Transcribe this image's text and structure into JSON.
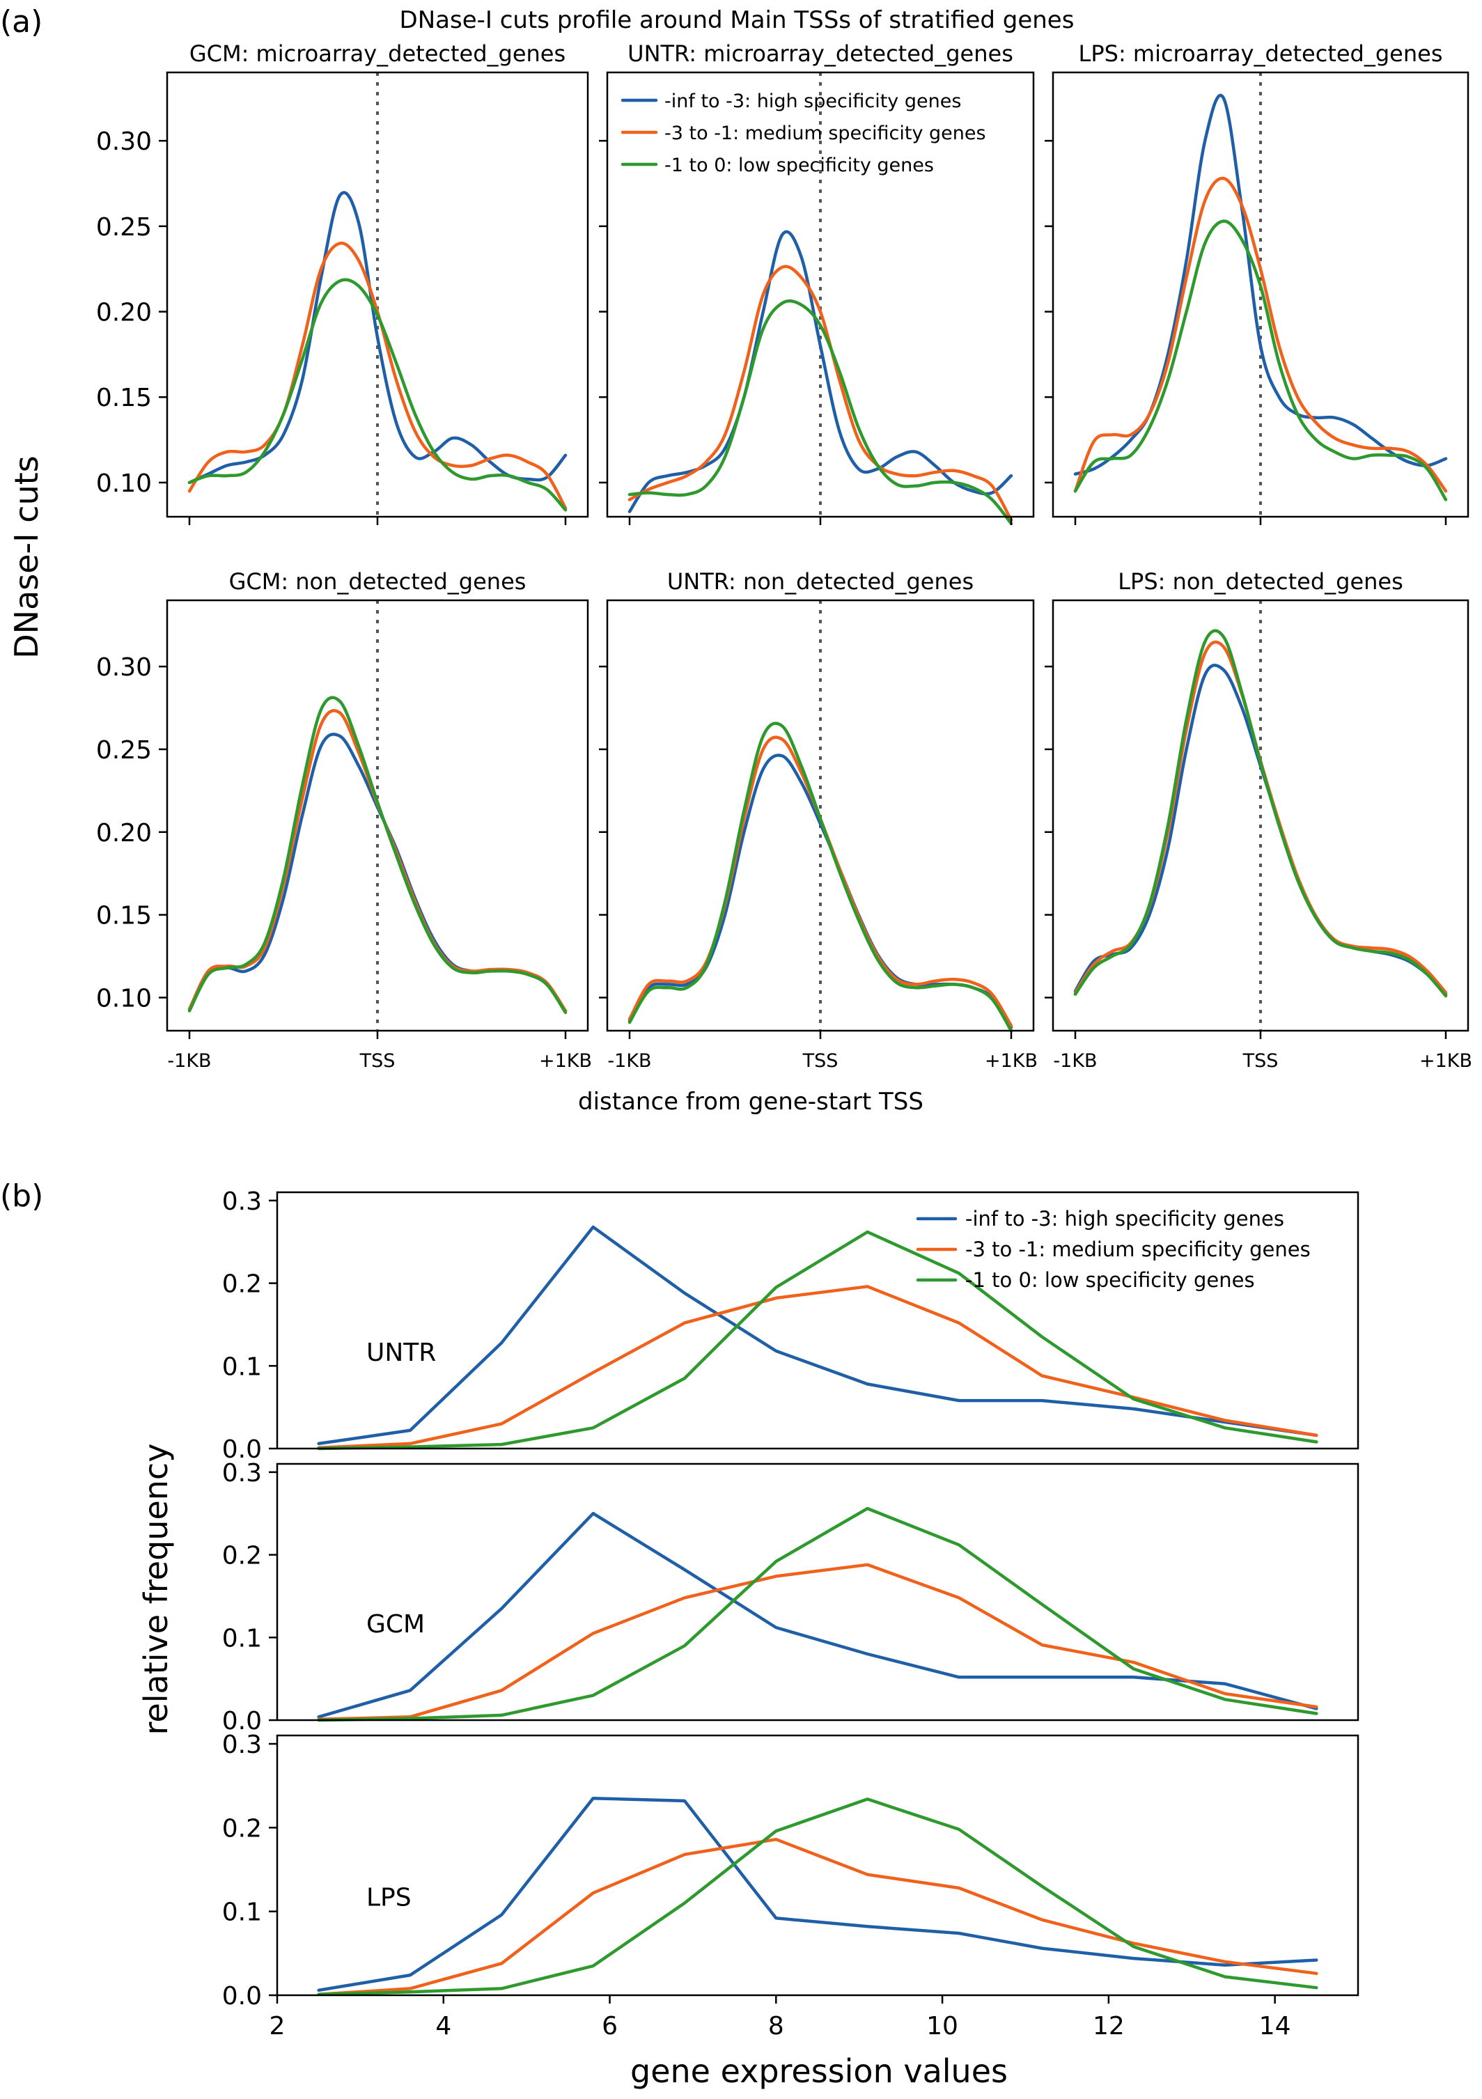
{
  "colors": {
    "high": "#1f5fa8",
    "medium": "#f0621c",
    "low": "#2e9a2e"
  },
  "panel_a": {
    "label": "(a)",
    "title": "DNase-I cuts profile around Main TSSs of stratified genes",
    "ylabel": "DNase-I cuts",
    "xlabel": "distance from gene-start TSS",
    "yticks": [
      "0.10",
      "0.15",
      "0.20",
      "0.25",
      "0.30"
    ],
    "xticks": [
      "-1KB",
      "TSS",
      "+1KB"
    ]
  },
  "panel_b": {
    "label": "(b)",
    "ylabel": "relative frequency",
    "xlabel": "gene expression values",
    "yticks": [
      "0.0",
      "0.1",
      "0.2",
      "0.3"
    ],
    "xticks": [
      "2",
      "4",
      "6",
      "8",
      "10",
      "12",
      "14"
    ]
  },
  "legend": {
    "high": "-inf to -3: high specificity genes",
    "medium": "-3 to -1: medium specificity genes",
    "low": "-1 to 0: low specificity genes"
  },
  "chart_data": [
    {
      "type": "line",
      "panel": "a",
      "title": "GCM: microarray_detected_genes",
      "x": [
        -1000,
        -900,
        -800,
        -700,
        -600,
        -500,
        -400,
        -300,
        -200,
        -100,
        0,
        100,
        200,
        300,
        400,
        500,
        600,
        700,
        800,
        900,
        1000
      ],
      "ylim": [
        0.08,
        0.34
      ],
      "series": [
        {
          "name": "-inf to -3: high specificity genes",
          "values": [
            0.1,
            0.105,
            0.11,
            0.112,
            0.116,
            0.128,
            0.16,
            0.22,
            0.268,
            0.252,
            0.185,
            0.135,
            0.115,
            0.118,
            0.126,
            0.122,
            0.112,
            0.104,
            0.102,
            0.103,
            0.116
          ]
        },
        {
          "name": "-3 to -1: medium specificity genes",
          "values": [
            0.095,
            0.112,
            0.118,
            0.118,
            0.122,
            0.14,
            0.18,
            0.225,
            0.24,
            0.23,
            0.2,
            0.16,
            0.13,
            0.115,
            0.11,
            0.11,
            0.114,
            0.116,
            0.112,
            0.105,
            0.085
          ]
        },
        {
          "name": "-1 to 0: low specificity genes",
          "values": [
            0.1,
            0.104,
            0.104,
            0.106,
            0.118,
            0.14,
            0.172,
            0.205,
            0.218,
            0.215,
            0.198,
            0.17,
            0.14,
            0.118,
            0.106,
            0.102,
            0.104,
            0.104,
            0.1,
            0.096,
            0.084
          ]
        }
      ]
    },
    {
      "type": "line",
      "panel": "a",
      "title": "UNTR: microarray_detected_genes",
      "x": [
        -1000,
        -900,
        -800,
        -700,
        -600,
        -500,
        -400,
        -300,
        -200,
        -100,
        0,
        100,
        200,
        300,
        400,
        500,
        600,
        700,
        800,
        900,
        1000
      ],
      "ylim": [
        0.08,
        0.34
      ],
      "series": [
        {
          "name": "-inf to -3: high specificity genes",
          "values": [
            0.083,
            0.1,
            0.104,
            0.106,
            0.11,
            0.12,
            0.15,
            0.2,
            0.245,
            0.232,
            0.18,
            0.13,
            0.108,
            0.108,
            0.115,
            0.118,
            0.11,
            0.1,
            0.095,
            0.094,
            0.104
          ]
        },
        {
          "name": "-3 to -1: medium specificity genes",
          "values": [
            0.09,
            0.096,
            0.1,
            0.104,
            0.112,
            0.128,
            0.165,
            0.21,
            0.226,
            0.22,
            0.2,
            0.16,
            0.125,
            0.11,
            0.105,
            0.104,
            0.106,
            0.107,
            0.104,
            0.098,
            0.078
          ]
        },
        {
          "name": "-1 to 0: low specificity genes",
          "values": [
            0.093,
            0.094,
            0.093,
            0.093,
            0.098,
            0.115,
            0.15,
            0.19,
            0.205,
            0.204,
            0.192,
            0.165,
            0.132,
            0.11,
            0.099,
            0.098,
            0.1,
            0.1,
            0.097,
            0.09,
            0.076
          ]
        }
      ]
    },
    {
      "type": "line",
      "panel": "a",
      "title": "LPS: microarray_detected_genes",
      "x": [
        -1000,
        -900,
        -800,
        -700,
        -600,
        -500,
        -400,
        -300,
        -200,
        -100,
        0,
        100,
        200,
        300,
        400,
        500,
        600,
        700,
        800,
        900,
        1000
      ],
      "ylim": [
        0.08,
        0.34
      ],
      "series": [
        {
          "name": "-inf to -3: high specificity genes",
          "values": [
            0.105,
            0.108,
            0.115,
            0.125,
            0.14,
            0.175,
            0.23,
            0.3,
            0.325,
            0.26,
            0.18,
            0.15,
            0.14,
            0.138,
            0.138,
            0.134,
            0.126,
            0.118,
            0.112,
            0.11,
            0.114
          ]
        },
        {
          "name": "-3 to -1: medium specificity genes",
          "values": [
            0.095,
            0.124,
            0.128,
            0.128,
            0.14,
            0.17,
            0.22,
            0.265,
            0.278,
            0.262,
            0.225,
            0.18,
            0.15,
            0.135,
            0.126,
            0.122,
            0.12,
            0.12,
            0.118,
            0.11,
            0.095
          ]
        },
        {
          "name": "-1 to 0: low specificity genes",
          "values": [
            0.095,
            0.112,
            0.114,
            0.116,
            0.132,
            0.16,
            0.2,
            0.24,
            0.253,
            0.242,
            0.215,
            0.17,
            0.14,
            0.125,
            0.118,
            0.114,
            0.116,
            0.116,
            0.115,
            0.108,
            0.09
          ]
        }
      ]
    },
    {
      "type": "line",
      "panel": "a",
      "title": "GCM: non_detected_genes",
      "x": [
        -1000,
        -900,
        -800,
        -700,
        -600,
        -500,
        -400,
        -300,
        -200,
        -100,
        0,
        100,
        200,
        300,
        400,
        500,
        600,
        700,
        800,
        900,
        1000
      ],
      "ylim": [
        0.08,
        0.34
      ],
      "series": [
        {
          "name": "-inf to -3: high specificity genes",
          "values": [
            0.093,
            0.114,
            0.118,
            0.116,
            0.126,
            0.16,
            0.21,
            0.252,
            0.258,
            0.24,
            0.215,
            0.19,
            0.16,
            0.135,
            0.12,
            0.116,
            0.116,
            0.116,
            0.114,
            0.108,
            0.092
          ]
        },
        {
          "name": "-3 to -1: medium specificity genes",
          "values": [
            0.093,
            0.116,
            0.119,
            0.119,
            0.13,
            0.168,
            0.22,
            0.265,
            0.272,
            0.248,
            0.217,
            0.188,
            0.158,
            0.133,
            0.119,
            0.116,
            0.117,
            0.117,
            0.115,
            0.109,
            0.092
          ]
        },
        {
          "name": "-1 to 0: low specificity genes",
          "values": [
            0.092,
            0.114,
            0.118,
            0.12,
            0.133,
            0.172,
            0.228,
            0.274,
            0.279,
            0.252,
            0.218,
            0.186,
            0.156,
            0.132,
            0.118,
            0.115,
            0.116,
            0.116,
            0.114,
            0.108,
            0.091
          ]
        }
      ]
    },
    {
      "type": "line",
      "panel": "a",
      "title": "UNTR: non_detected_genes",
      "x": [
        -1000,
        -900,
        -800,
        -700,
        -600,
        -500,
        -400,
        -300,
        -200,
        -100,
        0,
        100,
        200,
        300,
        400,
        500,
        600,
        700,
        800,
        900,
        1000
      ],
      "ylim": [
        0.08,
        0.34
      ],
      "series": [
        {
          "name": "-inf to -3: high specificity genes",
          "values": [
            0.086,
            0.106,
            0.108,
            0.108,
            0.118,
            0.15,
            0.2,
            0.238,
            0.246,
            0.23,
            0.205,
            0.178,
            0.15,
            0.126,
            0.112,
            0.108,
            0.108,
            0.108,
            0.106,
            0.1,
            0.082
          ]
        },
        {
          "name": "-3 to -1: medium specificity genes",
          "values": [
            0.087,
            0.108,
            0.11,
            0.11,
            0.121,
            0.156,
            0.208,
            0.25,
            0.256,
            0.236,
            0.208,
            0.178,
            0.149,
            0.125,
            0.111,
            0.108,
            0.11,
            0.111,
            0.109,
            0.102,
            0.083
          ]
        },
        {
          "name": "-1 to 0: low specificity genes",
          "values": [
            0.085,
            0.104,
            0.106,
            0.106,
            0.119,
            0.158,
            0.213,
            0.258,
            0.264,
            0.24,
            0.208,
            0.176,
            0.147,
            0.123,
            0.109,
            0.106,
            0.107,
            0.108,
            0.106,
            0.099,
            0.08
          ]
        }
      ]
    },
    {
      "type": "line",
      "panel": "a",
      "title": "LPS: non_detected_genes",
      "x": [
        -1000,
        -900,
        -800,
        -700,
        -600,
        -500,
        -400,
        -300,
        -200,
        -100,
        0,
        100,
        200,
        300,
        400,
        500,
        600,
        700,
        800,
        900,
        1000
      ],
      "ylim": [
        0.08,
        0.34
      ],
      "series": [
        {
          "name": "-inf to -3: high specificity genes",
          "values": [
            0.104,
            0.122,
            0.126,
            0.13,
            0.15,
            0.19,
            0.25,
            0.295,
            0.298,
            0.275,
            0.24,
            0.205,
            0.172,
            0.148,
            0.134,
            0.13,
            0.128,
            0.126,
            0.122,
            0.114,
            0.102
          ]
        },
        {
          "name": "-3 to -1: medium specificity genes",
          "values": [
            0.103,
            0.12,
            0.128,
            0.133,
            0.155,
            0.2,
            0.262,
            0.308,
            0.312,
            0.283,
            0.243,
            0.206,
            0.173,
            0.149,
            0.135,
            0.131,
            0.13,
            0.129,
            0.125,
            0.116,
            0.103
          ]
        },
        {
          "name": "-1 to 0: low specificity genes",
          "values": [
            0.102,
            0.118,
            0.125,
            0.132,
            0.156,
            0.204,
            0.268,
            0.315,
            0.318,
            0.284,
            0.242,
            0.204,
            0.171,
            0.148,
            0.134,
            0.13,
            0.128,
            0.127,
            0.123,
            0.114,
            0.101
          ]
        }
      ]
    },
    {
      "type": "line",
      "panel": "b",
      "label": "UNTR",
      "x": [
        2.5,
        3.6,
        4.7,
        5.8,
        6.9,
        8.0,
        9.1,
        10.2,
        11.2,
        12.3,
        13.4,
        14.5
      ],
      "xlim": [
        2.0,
        15.0
      ],
      "ylim": [
        0.0,
        0.31
      ],
      "series": [
        {
          "name": "-inf to -3: high specificity genes",
          "values": [
            0.006,
            0.022,
            0.128,
            0.268,
            0.188,
            0.118,
            0.078,
            0.058,
            0.058,
            0.048,
            0.032,
            0.016
          ]
        },
        {
          "name": "-3 to -1: medium specificity genes",
          "values": [
            0.001,
            0.006,
            0.03,
            0.092,
            0.152,
            0.182,
            0.196,
            0.152,
            0.088,
            0.062,
            0.034,
            0.016
          ]
        },
        {
          "name": "-1 to 0: low specificity genes",
          "values": [
            0.0,
            0.002,
            0.005,
            0.025,
            0.085,
            0.195,
            0.262,
            0.212,
            0.135,
            0.06,
            0.025,
            0.008
          ]
        }
      ]
    },
    {
      "type": "line",
      "panel": "b",
      "label": "GCM",
      "x": [
        2.5,
        3.6,
        4.7,
        5.8,
        6.9,
        8.0,
        9.1,
        10.2,
        11.2,
        12.3,
        13.4,
        14.5
      ],
      "xlim": [
        2.0,
        15.0
      ],
      "ylim": [
        0.0,
        0.31
      ],
      "series": [
        {
          "name": "-inf to -3: high specificity genes",
          "values": [
            0.004,
            0.036,
            0.135,
            0.25,
            0.182,
            0.112,
            0.08,
            0.052,
            0.052,
            0.052,
            0.044,
            0.014
          ]
        },
        {
          "name": "-3 to -1: medium specificity genes",
          "values": [
            0.001,
            0.004,
            0.036,
            0.105,
            0.148,
            0.174,
            0.188,
            0.148,
            0.091,
            0.07,
            0.032,
            0.016
          ]
        },
        {
          "name": "-1 to 0: low specificity genes",
          "values": [
            0.0,
            0.002,
            0.006,
            0.03,
            0.09,
            0.192,
            0.256,
            0.212,
            0.14,
            0.062,
            0.025,
            0.008
          ]
        }
      ]
    },
    {
      "type": "line",
      "panel": "b",
      "label": "LPS",
      "x": [
        2.5,
        3.6,
        4.7,
        5.8,
        6.9,
        8.0,
        9.1,
        10.2,
        11.2,
        12.3,
        13.4,
        14.5
      ],
      "xlim": [
        2.0,
        15.0
      ],
      "ylim": [
        0.0,
        0.31
      ],
      "series": [
        {
          "name": "-inf to -3: high specificity genes",
          "values": [
            0.006,
            0.024,
            0.096,
            0.235,
            0.232,
            0.092,
            0.082,
            0.074,
            0.056,
            0.044,
            0.036,
            0.042
          ]
        },
        {
          "name": "-3 to -1: medium specificity genes",
          "values": [
            0.001,
            0.008,
            0.038,
            0.122,
            0.168,
            0.186,
            0.144,
            0.128,
            0.09,
            0.062,
            0.04,
            0.026
          ]
        },
        {
          "name": "-1 to 0: low specificity genes",
          "values": [
            0.001,
            0.004,
            0.008,
            0.035,
            0.11,
            0.196,
            0.234,
            0.198,
            0.13,
            0.058,
            0.022,
            0.009
          ]
        }
      ]
    }
  ]
}
